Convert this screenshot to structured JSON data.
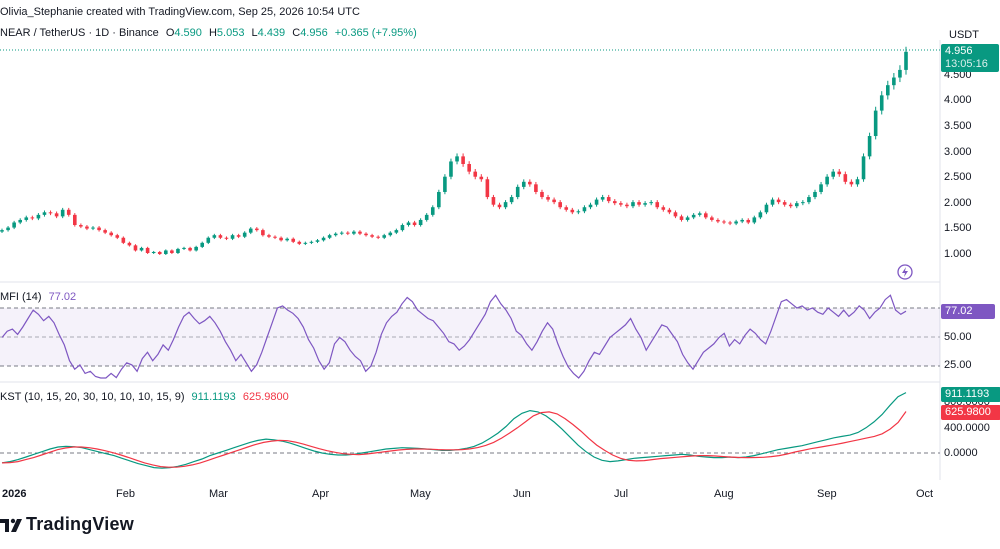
{
  "header": {
    "created": "Olivia_Stephanie created with TradingView.com, Sep 25, 2026 10:54 UTC",
    "symbol": "NEAR / TetherUS · 1D · Binance",
    "o_label": "O",
    "o_value": "4.590",
    "h_label": "H",
    "h_value": "5.053",
    "l_label": "L",
    "l_value": "4.439",
    "c_label": "C",
    "c_value": "4.956",
    "change": "+0.365 (+7.95%)",
    "currency": "USDT"
  },
  "price_axis": {
    "ticks": [
      "4.500",
      "4.000",
      "3.500",
      "3.000",
      "2.500",
      "2.000",
      "1.500",
      "1.000"
    ],
    "last_price": "4.956",
    "countdown": "13:05:16"
  },
  "mfi": {
    "label": "MFI (14)",
    "value": "77.02",
    "ticks": [
      "50.00",
      "25.00"
    ],
    "series": [
      52,
      58,
      60,
      55,
      62,
      70,
      78,
      74,
      68,
      72,
      66,
      55,
      45,
      30,
      22,
      26,
      18,
      20,
      15,
      10,
      12,
      18,
      14,
      22,
      28,
      26,
      20,
      32,
      38,
      30,
      36,
      45,
      40,
      50,
      62,
      72,
      76,
      70,
      65,
      68,
      72,
      66,
      58,
      48,
      40,
      30,
      36,
      28,
      20,
      26,
      38,
      52,
      66,
      80,
      82,
      78,
      75,
      70,
      62,
      50,
      42,
      30,
      22,
      28,
      46,
      52,
      48,
      40,
      34,
      30,
      20,
      25,
      38,
      55,
      66,
      72,
      76,
      84,
      90,
      86,
      78,
      74,
      70,
      68,
      62,
      56,
      48,
      46,
      40,
      44,
      50,
      58,
      66,
      74,
      86,
      92,
      84,
      78,
      70,
      58,
      54,
      46,
      40,
      48,
      58,
      66,
      60,
      46,
      34,
      24,
      18,
      10,
      20,
      30,
      38,
      36,
      44,
      52,
      56,
      60,
      64,
      70,
      60,
      52,
      40,
      48,
      56,
      64,
      62,
      55,
      48,
      36,
      28,
      22,
      30,
      38,
      42,
      46,
      52,
      56,
      44,
      50,
      46,
      54,
      60,
      56,
      50,
      46,
      58,
      72,
      86,
      88,
      84,
      80,
      82,
      78,
      80,
      76,
      74,
      80,
      76,
      72,
      78,
      72,
      76,
      82,
      78,
      70,
      76,
      80,
      88,
      92,
      78,
      74,
      77
    ]
  },
  "kst": {
    "label": "KST (10, 15, 20, 30, 10, 10, 10, 15, 9)",
    "value1": "911.1193",
    "value2": "625.9800",
    "ticks": [
      "800.0000",
      "400.0000",
      "0.0000"
    ],
    "kst_series": [
      -150,
      -130,
      -100,
      -60,
      -20,
      20,
      60,
      90,
      100,
      95,
      80,
      50,
      20,
      -10,
      -40,
      -80,
      -120,
      -160,
      -190,
      -220,
      -230,
      -220,
      -200,
      -170,
      -130,
      -90,
      -40,
      0,
      40,
      80,
      120,
      160,
      190,
      210,
      200,
      180,
      150,
      110,
      70,
      30,
      0,
      -20,
      -30,
      -30,
      -20,
      0,
      20,
      40,
      60,
      70,
      80,
      75,
      70,
      60,
      50,
      40,
      40,
      50,
      70,
      100,
      150,
      220,
      300,
      400,
      520,
      600,
      640,
      620,
      560,
      470,
      360,
      240,
      120,
      20,
      -60,
      -110,
      -130,
      -120,
      -100,
      -80,
      -70,
      -60,
      -50,
      -40,
      -30,
      -20,
      -30,
      -50,
      -60,
      -70,
      -70,
      -60,
      -70,
      -60,
      -40,
      -10,
      20,
      50,
      70,
      90,
      110,
      140,
      170,
      200,
      230,
      250,
      270,
      310,
      380,
      470,
      580,
      720,
      850,
      911
    ],
    "signal_series": [
      -150,
      -145,
      -130,
      -100,
      -70,
      -30,
      10,
      50,
      75,
      90,
      90,
      80,
      60,
      35,
      5,
      -30,
      -70,
      -110,
      -150,
      -180,
      -205,
      -215,
      -215,
      -200,
      -180,
      -150,
      -110,
      -70,
      -30,
      10,
      50,
      90,
      130,
      160,
      180,
      190,
      185,
      165,
      135,
      100,
      65,
      35,
      10,
      -10,
      -20,
      -25,
      -15,
      0,
      15,
      30,
      45,
      55,
      60,
      60,
      58,
      52,
      48,
      48,
      52,
      62,
      82,
      115,
      160,
      225,
      300,
      380,
      470,
      560,
      610,
      620,
      590,
      520,
      430,
      330,
      220,
      120,
      40,
      -30,
      -80,
      -110,
      -120,
      -115,
      -100,
      -85,
      -75,
      -65,
      -55,
      -45,
      -40,
      -40,
      -45,
      -55,
      -62,
      -68,
      -70,
      -68,
      -65,
      -55,
      -40,
      -15,
      15,
      40,
      65,
      85,
      105,
      125,
      150,
      175,
      200,
      225,
      250,
      290,
      360,
      460,
      626
    ]
  },
  "months": [
    "2026",
    "Feb",
    "Mar",
    "Apr",
    "May",
    "Jun",
    "Jul",
    "Aug",
    "Sep",
    "Oct"
  ],
  "footer": {
    "brand": "TradingView"
  },
  "colors": {
    "up": "#089981",
    "down": "#f23645",
    "mfi_line": "#7e57c2",
    "mfi_fill": "#7e57c2",
    "kst": "#089981",
    "signal": "#f23645"
  },
  "price_series": [
    1.45,
    1.5,
    1.6,
    1.65,
    1.7,
    1.68,
    1.75,
    1.8,
    1.78,
    1.72,
    1.85,
    1.75,
    1.55,
    1.52,
    1.48,
    1.5,
    1.45,
    1.4,
    1.35,
    1.3,
    1.2,
    1.15,
    1.05,
    1.1,
    1.0,
    1.02,
    0.98,
    1.05,
    1.0,
    1.08,
    1.1,
    1.05,
    1.12,
    1.2,
    1.3,
    1.35,
    1.3,
    1.28,
    1.35,
    1.32,
    1.4,
    1.48,
    1.45,
    1.35,
    1.32,
    1.3,
    1.25,
    1.28,
    1.22,
    1.18,
    1.2,
    1.22,
    1.25,
    1.3,
    1.35,
    1.38,
    1.4,
    1.38,
    1.42,
    1.38,
    1.35,
    1.32,
    1.3,
    1.35,
    1.4,
    1.45,
    1.55,
    1.6,
    1.55,
    1.65,
    1.75,
    1.9,
    2.2,
    2.5,
    2.8,
    2.9,
    2.75,
    2.6,
    2.5,
    2.45,
    2.1,
    1.95,
    1.9,
    2.0,
    2.1,
    2.3,
    2.4,
    2.35,
    2.2,
    2.1,
    2.05,
    2.0,
    1.9,
    1.85,
    1.8,
    1.82,
    1.9,
    1.95,
    2.05,
    2.1,
    2.02,
    1.98,
    1.95,
    1.92,
    2.0,
    1.95,
    1.98,
    2.0,
    1.9,
    1.85,
    1.8,
    1.72,
    1.65,
    1.7,
    1.75,
    1.78,
    1.7,
    1.65,
    1.62,
    1.6,
    1.58,
    1.62,
    1.65,
    1.6,
    1.7,
    1.8,
    1.95,
    2.05,
    2.0,
    1.95,
    1.92,
    1.98,
    2.0,
    2.1,
    2.2,
    2.35,
    2.5,
    2.6,
    2.55,
    2.4,
    2.35,
    2.45,
    2.9,
    3.3,
    3.8,
    4.1,
    4.3,
    4.45,
    4.6,
    4.956
  ]
}
